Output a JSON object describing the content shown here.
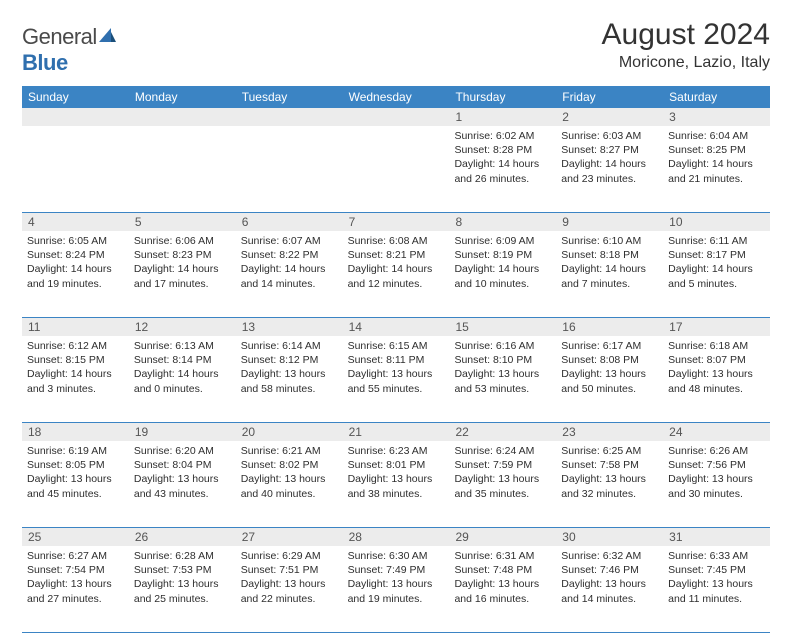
{
  "logo": {
    "text1": "General",
    "text2": "Blue"
  },
  "title": "August 2024",
  "subtitle": "Moricone, Lazio, Italy",
  "colors": {
    "header_bg": "#3b84c4",
    "header_fg": "#ffffff",
    "daynum_bg": "#ececec",
    "border": "#3b84c4"
  },
  "dayNames": [
    "Sunday",
    "Monday",
    "Tuesday",
    "Wednesday",
    "Thursday",
    "Friday",
    "Saturday"
  ],
  "weeks": [
    [
      {
        "n": "",
        "sr": "",
        "ss": "",
        "dl": ""
      },
      {
        "n": "",
        "sr": "",
        "ss": "",
        "dl": ""
      },
      {
        "n": "",
        "sr": "",
        "ss": "",
        "dl": ""
      },
      {
        "n": "",
        "sr": "",
        "ss": "",
        "dl": ""
      },
      {
        "n": "1",
        "sr": "Sunrise: 6:02 AM",
        "ss": "Sunset: 8:28 PM",
        "dl": "Daylight: 14 hours and 26 minutes."
      },
      {
        "n": "2",
        "sr": "Sunrise: 6:03 AM",
        "ss": "Sunset: 8:27 PM",
        "dl": "Daylight: 14 hours and 23 minutes."
      },
      {
        "n": "3",
        "sr": "Sunrise: 6:04 AM",
        "ss": "Sunset: 8:25 PM",
        "dl": "Daylight: 14 hours and 21 minutes."
      }
    ],
    [
      {
        "n": "4",
        "sr": "Sunrise: 6:05 AM",
        "ss": "Sunset: 8:24 PM",
        "dl": "Daylight: 14 hours and 19 minutes."
      },
      {
        "n": "5",
        "sr": "Sunrise: 6:06 AM",
        "ss": "Sunset: 8:23 PM",
        "dl": "Daylight: 14 hours and 17 minutes."
      },
      {
        "n": "6",
        "sr": "Sunrise: 6:07 AM",
        "ss": "Sunset: 8:22 PM",
        "dl": "Daylight: 14 hours and 14 minutes."
      },
      {
        "n": "7",
        "sr": "Sunrise: 6:08 AM",
        "ss": "Sunset: 8:21 PM",
        "dl": "Daylight: 14 hours and 12 minutes."
      },
      {
        "n": "8",
        "sr": "Sunrise: 6:09 AM",
        "ss": "Sunset: 8:19 PM",
        "dl": "Daylight: 14 hours and 10 minutes."
      },
      {
        "n": "9",
        "sr": "Sunrise: 6:10 AM",
        "ss": "Sunset: 8:18 PM",
        "dl": "Daylight: 14 hours and 7 minutes."
      },
      {
        "n": "10",
        "sr": "Sunrise: 6:11 AM",
        "ss": "Sunset: 8:17 PM",
        "dl": "Daylight: 14 hours and 5 minutes."
      }
    ],
    [
      {
        "n": "11",
        "sr": "Sunrise: 6:12 AM",
        "ss": "Sunset: 8:15 PM",
        "dl": "Daylight: 14 hours and 3 minutes."
      },
      {
        "n": "12",
        "sr": "Sunrise: 6:13 AM",
        "ss": "Sunset: 8:14 PM",
        "dl": "Daylight: 14 hours and 0 minutes."
      },
      {
        "n": "13",
        "sr": "Sunrise: 6:14 AM",
        "ss": "Sunset: 8:12 PM",
        "dl": "Daylight: 13 hours and 58 minutes."
      },
      {
        "n": "14",
        "sr": "Sunrise: 6:15 AM",
        "ss": "Sunset: 8:11 PM",
        "dl": "Daylight: 13 hours and 55 minutes."
      },
      {
        "n": "15",
        "sr": "Sunrise: 6:16 AM",
        "ss": "Sunset: 8:10 PM",
        "dl": "Daylight: 13 hours and 53 minutes."
      },
      {
        "n": "16",
        "sr": "Sunrise: 6:17 AM",
        "ss": "Sunset: 8:08 PM",
        "dl": "Daylight: 13 hours and 50 minutes."
      },
      {
        "n": "17",
        "sr": "Sunrise: 6:18 AM",
        "ss": "Sunset: 8:07 PM",
        "dl": "Daylight: 13 hours and 48 minutes."
      }
    ],
    [
      {
        "n": "18",
        "sr": "Sunrise: 6:19 AM",
        "ss": "Sunset: 8:05 PM",
        "dl": "Daylight: 13 hours and 45 minutes."
      },
      {
        "n": "19",
        "sr": "Sunrise: 6:20 AM",
        "ss": "Sunset: 8:04 PM",
        "dl": "Daylight: 13 hours and 43 minutes."
      },
      {
        "n": "20",
        "sr": "Sunrise: 6:21 AM",
        "ss": "Sunset: 8:02 PM",
        "dl": "Daylight: 13 hours and 40 minutes."
      },
      {
        "n": "21",
        "sr": "Sunrise: 6:23 AM",
        "ss": "Sunset: 8:01 PM",
        "dl": "Daylight: 13 hours and 38 minutes."
      },
      {
        "n": "22",
        "sr": "Sunrise: 6:24 AM",
        "ss": "Sunset: 7:59 PM",
        "dl": "Daylight: 13 hours and 35 minutes."
      },
      {
        "n": "23",
        "sr": "Sunrise: 6:25 AM",
        "ss": "Sunset: 7:58 PM",
        "dl": "Daylight: 13 hours and 32 minutes."
      },
      {
        "n": "24",
        "sr": "Sunrise: 6:26 AM",
        "ss": "Sunset: 7:56 PM",
        "dl": "Daylight: 13 hours and 30 minutes."
      }
    ],
    [
      {
        "n": "25",
        "sr": "Sunrise: 6:27 AM",
        "ss": "Sunset: 7:54 PM",
        "dl": "Daylight: 13 hours and 27 minutes."
      },
      {
        "n": "26",
        "sr": "Sunrise: 6:28 AM",
        "ss": "Sunset: 7:53 PM",
        "dl": "Daylight: 13 hours and 25 minutes."
      },
      {
        "n": "27",
        "sr": "Sunrise: 6:29 AM",
        "ss": "Sunset: 7:51 PM",
        "dl": "Daylight: 13 hours and 22 minutes."
      },
      {
        "n": "28",
        "sr": "Sunrise: 6:30 AM",
        "ss": "Sunset: 7:49 PM",
        "dl": "Daylight: 13 hours and 19 minutes."
      },
      {
        "n": "29",
        "sr": "Sunrise: 6:31 AM",
        "ss": "Sunset: 7:48 PM",
        "dl": "Daylight: 13 hours and 16 minutes."
      },
      {
        "n": "30",
        "sr": "Sunrise: 6:32 AM",
        "ss": "Sunset: 7:46 PM",
        "dl": "Daylight: 13 hours and 14 minutes."
      },
      {
        "n": "31",
        "sr": "Sunrise: 6:33 AM",
        "ss": "Sunset: 7:45 PM",
        "dl": "Daylight: 13 hours and 11 minutes."
      }
    ]
  ]
}
